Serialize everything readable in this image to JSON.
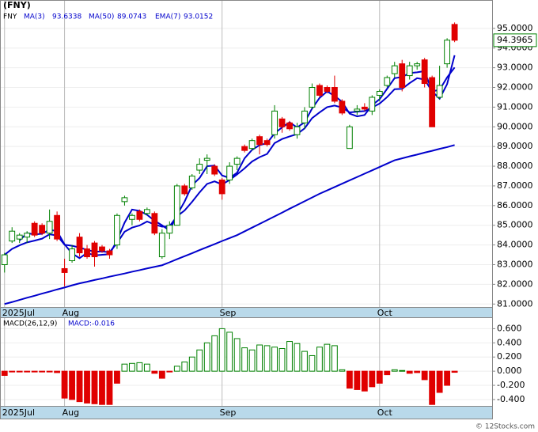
{
  "chart_data": [
    {
      "type": "candlestick",
      "title": "(FNY)",
      "name": "FNY",
      "up_color": "#008000",
      "down_color": "#e00000",
      "xlim": [
        -0.5,
        65
      ],
      "ylim": [
        80.85,
        96.4
      ],
      "xticks": [
        {
          "value": 0,
          "label": "2025Jul"
        },
        {
          "value": 8,
          "label": "Aug"
        },
        {
          "value": 29,
          "label": "Sep"
        },
        {
          "value": 50,
          "label": "Oct"
        }
      ],
      "yticks": [
        {
          "value": 81,
          "label": "81.0000"
        },
        {
          "value": 82,
          "label": "82.0000"
        },
        {
          "value": 83,
          "label": "83.0000"
        },
        {
          "value": 84,
          "label": "84.0000"
        },
        {
          "value": 85,
          "label": "85.0000"
        },
        {
          "value": 86,
          "label": "86.0000"
        },
        {
          "value": 87,
          "label": "87.0000"
        },
        {
          "value": 88,
          "label": "88.0000"
        },
        {
          "value": 89,
          "label": "89.0000"
        },
        {
          "value": 90,
          "label": "90.0000"
        },
        {
          "value": 91,
          "label": "91.0000"
        },
        {
          "value": 92,
          "label": "92.0000"
        },
        {
          "value": 93,
          "label": "93.0000"
        },
        {
          "value": 94,
          "label": "94.0000"
        },
        {
          "value": 95,
          "label": "95.0000"
        }
      ],
      "open": [
        83.0,
        84.2,
        84.3,
        84.4,
        85.1,
        85.0,
        84.6,
        85.5,
        82.8,
        83.2,
        84.4,
        83.8,
        84.1,
        83.9,
        83.7,
        84.0,
        86.2,
        85.3,
        85.7,
        85.6,
        85.6,
        83.4,
        84.6,
        85.0,
        87.0,
        86.9,
        87.8,
        88.3,
        88.0,
        87.3,
        87.3,
        88.1,
        89.0,
        88.9,
        89.5,
        89.3,
        89.6,
        90.4,
        90.2,
        89.6,
        90.2,
        91.0,
        92.1,
        92.0,
        92.0,
        91.3,
        88.9,
        90.8,
        91.0,
        90.8,
        91.6,
        92.1,
        92.7,
        93.2,
        92.6,
        93.1,
        93.4,
        92.5,
        91.5,
        93.2,
        95.2
      ],
      "high": [
        83.6,
        84.9,
        84.6,
        84.7,
        85.2,
        85.1,
        85.8,
        85.7,
        83.3,
        84.0,
        84.6,
        84.0,
        84.2,
        84.0,
        83.8,
        85.6,
        86.5,
        85.6,
        85.8,
        85.9,
        85.7,
        84.8,
        85.2,
        87.1,
        87.1,
        87.6,
        88.4,
        88.6,
        88.1,
        87.4,
        88.2,
        88.5,
        89.1,
        89.4,
        89.6,
        89.4,
        91.1,
        90.5,
        90.3,
        90.2,
        91.0,
        92.2,
        92.2,
        92.1,
        92.6,
        91.4,
        90.1,
        91.1,
        91.2,
        91.6,
        91.9,
        92.6,
        93.3,
        93.4,
        93.3,
        93.3,
        93.5,
        92.6,
        93.1,
        94.5,
        95.3
      ],
      "low": [
        82.6,
        84.1,
        84.1,
        84.1,
        84.4,
        84.5,
        84.3,
        84.2,
        81.9,
        83.1,
        83.4,
        83.3,
        82.9,
        83.6,
        83.3,
        83.8,
        86.0,
        85.0,
        85.2,
        85.5,
        84.5,
        83.3,
        84.3,
        85.0,
        86.5,
        86.8,
        87.6,
        87.6,
        87.5,
        86.3,
        87.1,
        87.8,
        88.7,
        88.8,
        88.6,
        89.0,
        89.4,
        89.7,
        89.8,
        89.4,
        89.9,
        90.9,
        91.5,
        91.7,
        91.2,
        90.6,
        88.9,
        90.6,
        90.8,
        90.6,
        91.3,
        92.0,
        92.5,
        91.8,
        92.4,
        92.9,
        92.0,
        90.0,
        91.4,
        93.0,
        94.3
      ],
      "close": [
        83.5,
        84.7,
        84.5,
        84.6,
        84.5,
        84.6,
        85.2,
        84.3,
        82.6,
        83.8,
        83.6,
        83.4,
        83.4,
        83.7,
        83.5,
        85.5,
        86.4,
        85.5,
        85.3,
        85.8,
        84.6,
        84.6,
        85.0,
        87.0,
        86.6,
        87.5,
        88.1,
        88.4,
        87.6,
        86.6,
        88.0,
        88.4,
        88.8,
        89.3,
        89.1,
        89.1,
        90.8,
        90.0,
        89.9,
        90.0,
        90.8,
        92.0,
        91.6,
        91.8,
        91.3,
        90.7,
        90.0,
        90.9,
        90.9,
        91.5,
        91.8,
        92.5,
        93.1,
        92.0,
        93.1,
        93.2,
        92.2,
        90.0,
        92.1,
        94.4,
        94.3965
      ],
      "series": [
        {
          "name": "MA(3)",
          "color": "#0000cc",
          "values": [
            null,
            null,
            84.23,
            84.6,
            84.53,
            84.57,
            84.77,
            84.7,
            84.03,
            83.57,
            83.33,
            83.6,
            83.47,
            83.5,
            83.53,
            84.23,
            85.13,
            85.8,
            85.73,
            85.53,
            85.23,
            85.0,
            84.73,
            85.53,
            86.2,
            87.03,
            87.4,
            88.0,
            88.03,
            87.53,
            87.4,
            87.67,
            88.4,
            88.83,
            89.07,
            89.17,
            89.67,
            89.97,
            90.23,
            89.97,
            90.23,
            90.93,
            91.47,
            91.8,
            91.57,
            91.27,
            90.67,
            90.53,
            90.6,
            91.1,
            91.4,
            91.93,
            92.47,
            92.53,
            92.73,
            92.77,
            92.83,
            91.8,
            91.43,
            92.17,
            93.6338
          ]
        },
        {
          "name": "MA(50)",
          "color": "#0000cc",
          "values": [
            81.0,
            81.1,
            81.21,
            81.32,
            81.42,
            81.53,
            81.63,
            81.74,
            81.84,
            81.95,
            82.05,
            82.13,
            82.22,
            82.3,
            82.39,
            82.47,
            82.55,
            82.64,
            82.72,
            82.81,
            82.89,
            82.97,
            83.12,
            83.28,
            83.43,
            83.58,
            83.74,
            83.89,
            84.04,
            84.2,
            84.35,
            84.5,
            84.69,
            84.88,
            85.07,
            85.26,
            85.45,
            85.64,
            85.84,
            86.03,
            86.22,
            86.41,
            86.6,
            86.77,
            86.94,
            87.11,
            87.28,
            87.45,
            87.62,
            87.79,
            87.96,
            88.13,
            88.3,
            88.4,
            88.5,
            88.59,
            88.69,
            88.78,
            88.88,
            88.97,
            89.0743
          ]
        },
        {
          "name": "EMA(7)",
          "color": "#0000cc",
          "values": [
            83.5,
            83.8,
            83.98,
            84.13,
            84.22,
            84.32,
            84.54,
            84.48,
            84.01,
            83.96,
            83.87,
            83.75,
            83.66,
            83.67,
            83.63,
            84.1,
            84.67,
            84.88,
            84.99,
            85.19,
            85.04,
            84.93,
            84.95,
            85.46,
            85.75,
            86.19,
            86.67,
            87.1,
            87.23,
            87.07,
            87.3,
            87.58,
            87.89,
            88.24,
            88.46,
            88.62,
            89.17,
            89.38,
            89.51,
            89.63,
            89.92,
            90.44,
            90.73,
            91.0,
            91.08,
            90.98,
            90.73,
            90.77,
            90.8,
            90.98,
            91.18,
            91.51,
            91.91,
            91.93,
            92.22,
            92.47,
            92.4,
            91.8,
            91.88,
            92.51,
            93.0152
          ]
        }
      ]
    },
    {
      "type": "bar",
      "title": "MACD(26,12,9)",
      "legend_label": "MACD:-0.016",
      "up_color": "#008000",
      "down_color": "#e00000",
      "xlim": [
        -0.5,
        65
      ],
      "ylim": [
        -0.49,
        0.75
      ],
      "xticks": [
        {
          "value": 0,
          "label": "2025Jul"
        },
        {
          "value": 8,
          "label": "Aug"
        },
        {
          "value": 29,
          "label": "Sep"
        },
        {
          "value": 50,
          "label": "Oct"
        }
      ],
      "yticks": [
        {
          "value": 0.6,
          "label": "0.600"
        },
        {
          "value": 0.4,
          "label": "0.400"
        },
        {
          "value": 0.2,
          "label": "0.200"
        },
        {
          "value": 0,
          "label": "0.000"
        },
        {
          "value": -0.2,
          "label": "-0.200"
        },
        {
          "value": -0.4,
          "label": "-0.400"
        }
      ],
      "values": [
        -0.06,
        -0.01,
        -0.01,
        -0.01,
        -0.01,
        -0.01,
        -0.01,
        -0.02,
        -0.38,
        -0.4,
        -0.43,
        -0.45,
        -0.46,
        -0.47,
        -0.47,
        -0.17,
        0.1,
        0.11,
        0.12,
        0.1,
        -0.03,
        -0.1,
        -0.01,
        0.07,
        0.13,
        0.2,
        0.3,
        0.4,
        0.5,
        0.6,
        0.55,
        0.46,
        0.33,
        0.3,
        0.37,
        0.36,
        0.34,
        0.32,
        0.42,
        0.39,
        0.28,
        0.22,
        0.34,
        0.38,
        0.36,
        0.02,
        -0.24,
        -0.26,
        -0.28,
        -0.22,
        -0.17,
        -0.05,
        0.02,
        0.01,
        -0.03,
        -0.02,
        -0.12,
        -0.47,
        -0.3,
        -0.2,
        -0.016
      ]
    }
  ],
  "credit": "© 12Stocks.com"
}
